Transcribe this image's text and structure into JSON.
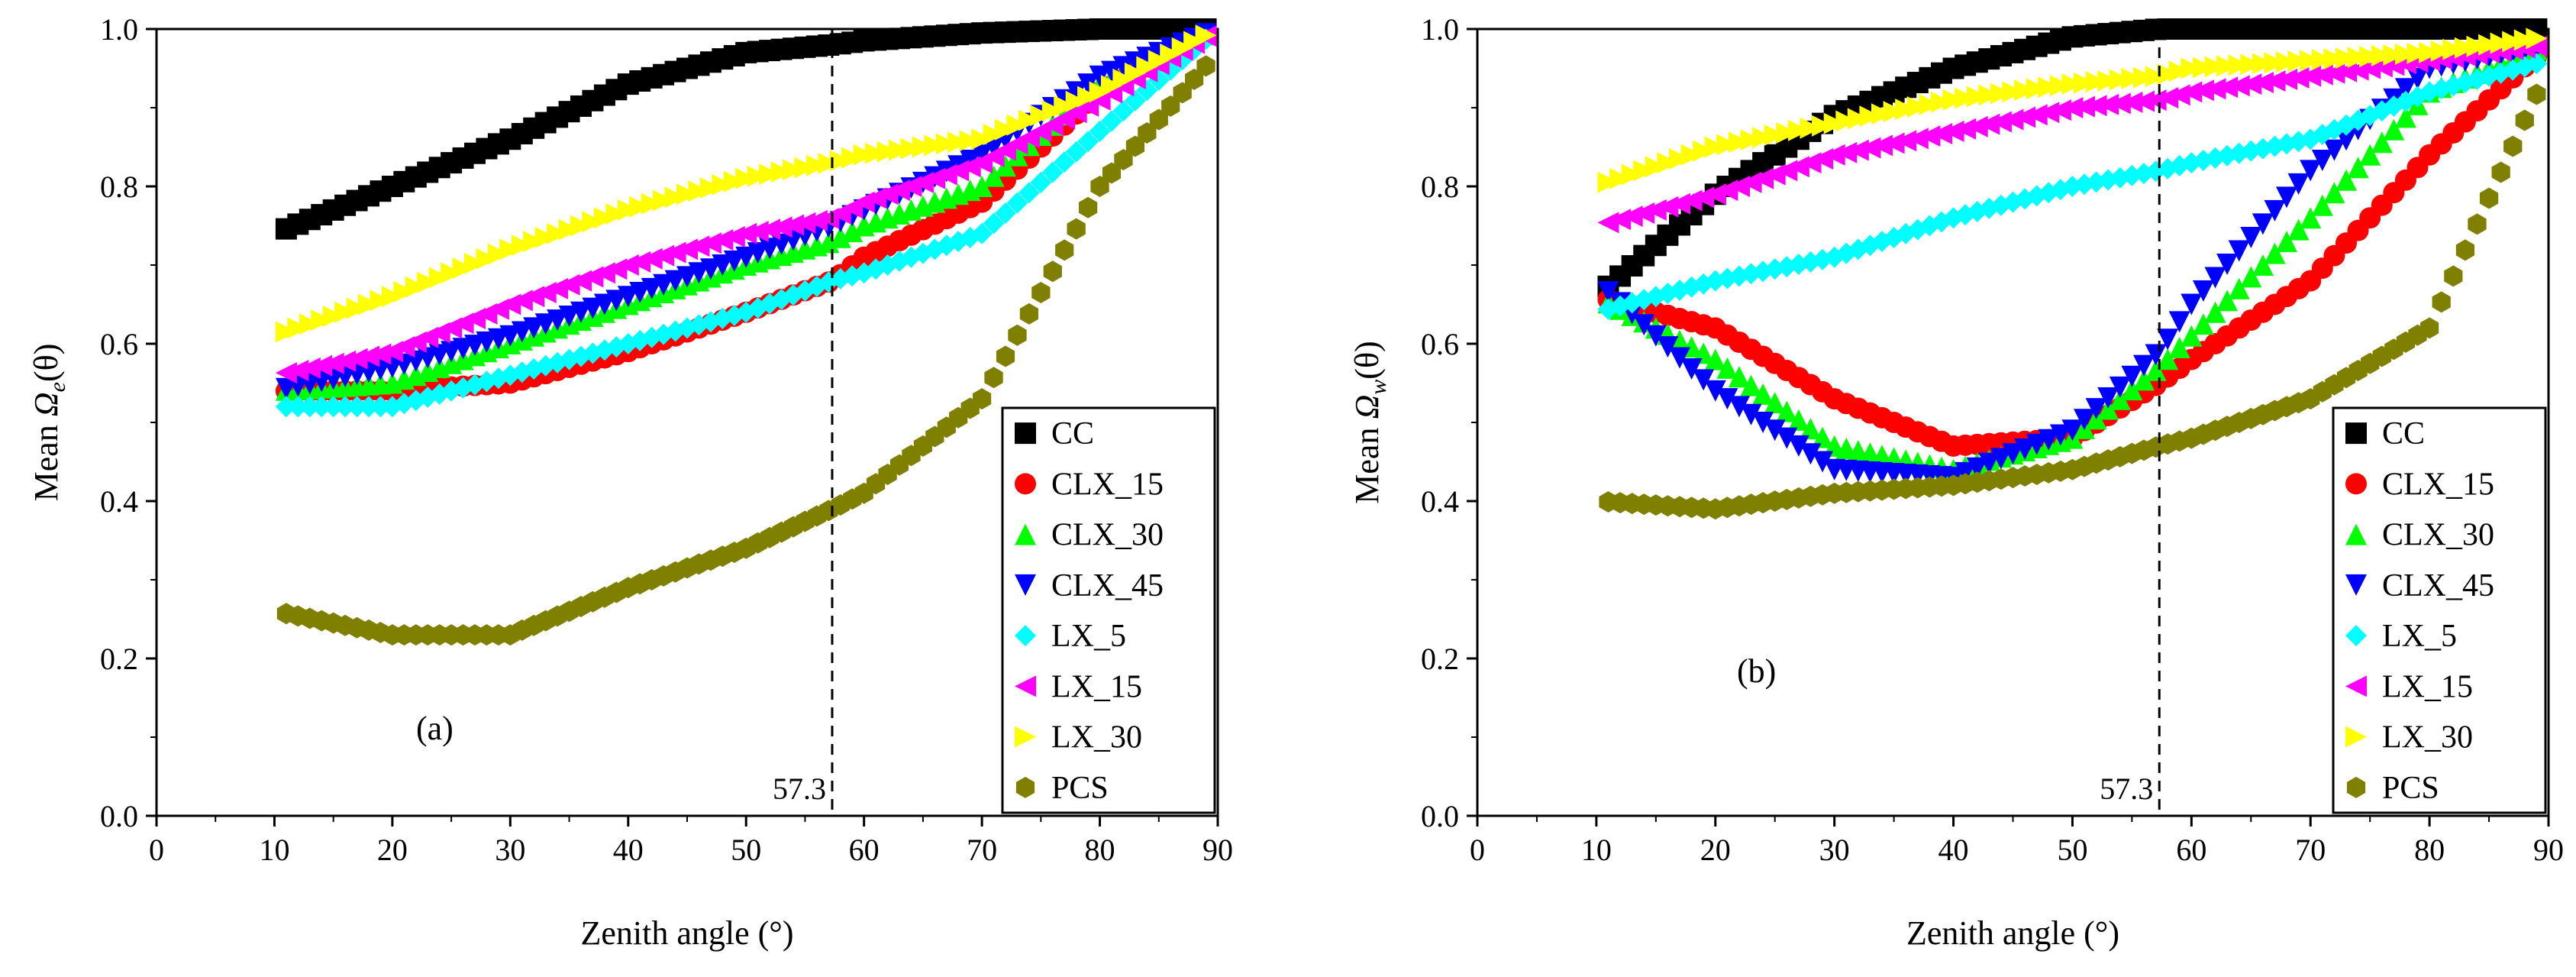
{
  "figure": {
    "ref_line_label": "57.3",
    "ref_line_x": 57.3
  },
  "chart_data": [
    {
      "type": "scatter",
      "panel_label": "(a)",
      "title": "",
      "xlabel": "Zenith angle (°)",
      "ylabel_prefix": "Mean ",
      "ylabel_symbol": "Ω",
      "ylabel_subscript": "e",
      "ylabel_suffix": "(θ)",
      "xlim": [
        0,
        90
      ],
      "ylim": [
        0,
        1.0
      ],
      "xticks": [
        "0",
        "10",
        "20",
        "30",
        "40",
        "50",
        "60",
        "70",
        "80",
        "90"
      ],
      "yticks": [
        "0.0",
        "0.2",
        "0.4",
        "0.6",
        "0.8",
        "1.0"
      ],
      "grid": false,
      "legend_position": "bottom-right",
      "x": [
        10,
        20,
        30,
        40,
        50,
        57.3,
        60,
        70,
        80,
        90
      ],
      "series": [
        {
          "name": "CC",
          "marker": "square",
          "color": "#000000",
          "y": [
            0.74,
            0.8,
            0.86,
            0.93,
            0.97,
            0.98,
            0.985,
            0.995,
            1.0,
            1.0
          ]
        },
        {
          "name": "CLX_15",
          "marker": "circle",
          "color": "#ff0000",
          "y": [
            0.54,
            0.54,
            0.55,
            0.59,
            0.64,
            0.68,
            0.71,
            0.78,
            0.92,
            1.0
          ]
        },
        {
          "name": "CLX_30",
          "marker": "triangle-up",
          "color": "#00ff00",
          "y": [
            0.54,
            0.55,
            0.6,
            0.65,
            0.7,
            0.73,
            0.75,
            0.8,
            0.93,
            1.0
          ]
        },
        {
          "name": "CLX_45",
          "marker": "triangle-down",
          "color": "#0000ff",
          "y": [
            0.54,
            0.57,
            0.61,
            0.66,
            0.71,
            0.75,
            0.77,
            0.84,
            0.94,
            1.0
          ]
        },
        {
          "name": "LX_5",
          "marker": "diamond",
          "color": "#00ffff",
          "y": [
            0.52,
            0.52,
            0.56,
            0.6,
            0.64,
            0.68,
            0.69,
            0.74,
            0.87,
            1.0
          ]
        },
        {
          "name": "LX_15",
          "marker": "triangle-left",
          "color": "#ff00ff",
          "y": [
            0.56,
            0.59,
            0.65,
            0.7,
            0.74,
            0.76,
            0.78,
            0.83,
            0.91,
            1.0
          ]
        },
        {
          "name": "LX_30",
          "marker": "triangle-right",
          "color": "#ffff00",
          "y": [
            0.61,
            0.66,
            0.72,
            0.77,
            0.81,
            0.83,
            0.84,
            0.86,
            0.92,
            1.0
          ]
        },
        {
          "name": "PCS",
          "marker": "hexagon",
          "color": "#808000",
          "y": [
            0.26,
            0.23,
            0.23,
            0.29,
            0.34,
            0.39,
            0.41,
            0.53,
            0.8,
            0.97
          ]
        }
      ]
    },
    {
      "type": "scatter",
      "panel_label": "(b)",
      "title": "",
      "xlabel": "Zenith angle (°)",
      "ylabel_prefix": "Mean ",
      "ylabel_symbol": "Ω",
      "ylabel_subscript": "w",
      "ylabel_suffix": "(θ)",
      "xlim": [
        0,
        90
      ],
      "ylim": [
        0,
        1.0
      ],
      "xticks": [
        "0",
        "10",
        "20",
        "30",
        "40",
        "50",
        "60",
        "70",
        "80",
        "90"
      ],
      "yticks": [
        "0.0",
        "0.2",
        "0.4",
        "0.6",
        "0.8",
        "1.0"
      ],
      "grid": false,
      "legend_position": "bottom-right",
      "x": [
        10,
        20,
        30,
        40,
        50,
        57.3,
        60,
        70,
        80,
        90
      ],
      "series": [
        {
          "name": "CC",
          "marker": "square",
          "color": "#000000",
          "y": [
            0.66,
            0.79,
            0.89,
            0.95,
            0.99,
            1.0,
            1.0,
            1.0,
            1.0,
            1.0
          ]
        },
        {
          "name": "CLX_15",
          "marker": "circle",
          "color": "#ff0000",
          "y": [
            0.66,
            0.62,
            0.53,
            0.47,
            0.48,
            0.55,
            0.58,
            0.68,
            0.84,
            0.98
          ]
        },
        {
          "name": "CLX_30",
          "marker": "triangle-up",
          "color": "#00ff00",
          "y": [
            0.66,
            0.58,
            0.47,
            0.44,
            0.48,
            0.57,
            0.61,
            0.76,
            0.92,
            0.98
          ]
        },
        {
          "name": "CLX_45",
          "marker": "triangle-down",
          "color": "#0000ff",
          "y": [
            0.68,
            0.54,
            0.44,
            0.43,
            0.49,
            0.59,
            0.65,
            0.82,
            0.95,
            0.98
          ]
        },
        {
          "name": "LX_5",
          "marker": "diamond",
          "color": "#00ffff",
          "y": [
            0.64,
            0.68,
            0.71,
            0.76,
            0.8,
            0.82,
            0.83,
            0.86,
            0.92,
            0.96
          ]
        },
        {
          "name": "LX_15",
          "marker": "triangle-left",
          "color": "#ff00ff",
          "y": [
            0.75,
            0.79,
            0.84,
            0.87,
            0.9,
            0.91,
            0.92,
            0.94,
            0.96,
            0.98
          ]
        },
        {
          "name": "LX_30",
          "marker": "triangle-right",
          "color": "#ffff00",
          "y": [
            0.8,
            0.85,
            0.88,
            0.91,
            0.93,
            0.94,
            0.95,
            0.96,
            0.97,
            0.99
          ]
        },
        {
          "name": "PCS",
          "marker": "hexagon",
          "color": "#808000",
          "y": [
            0.4,
            0.39,
            0.41,
            0.42,
            0.44,
            0.47,
            0.48,
            0.53,
            0.62,
            0.95
          ]
        }
      ]
    }
  ]
}
